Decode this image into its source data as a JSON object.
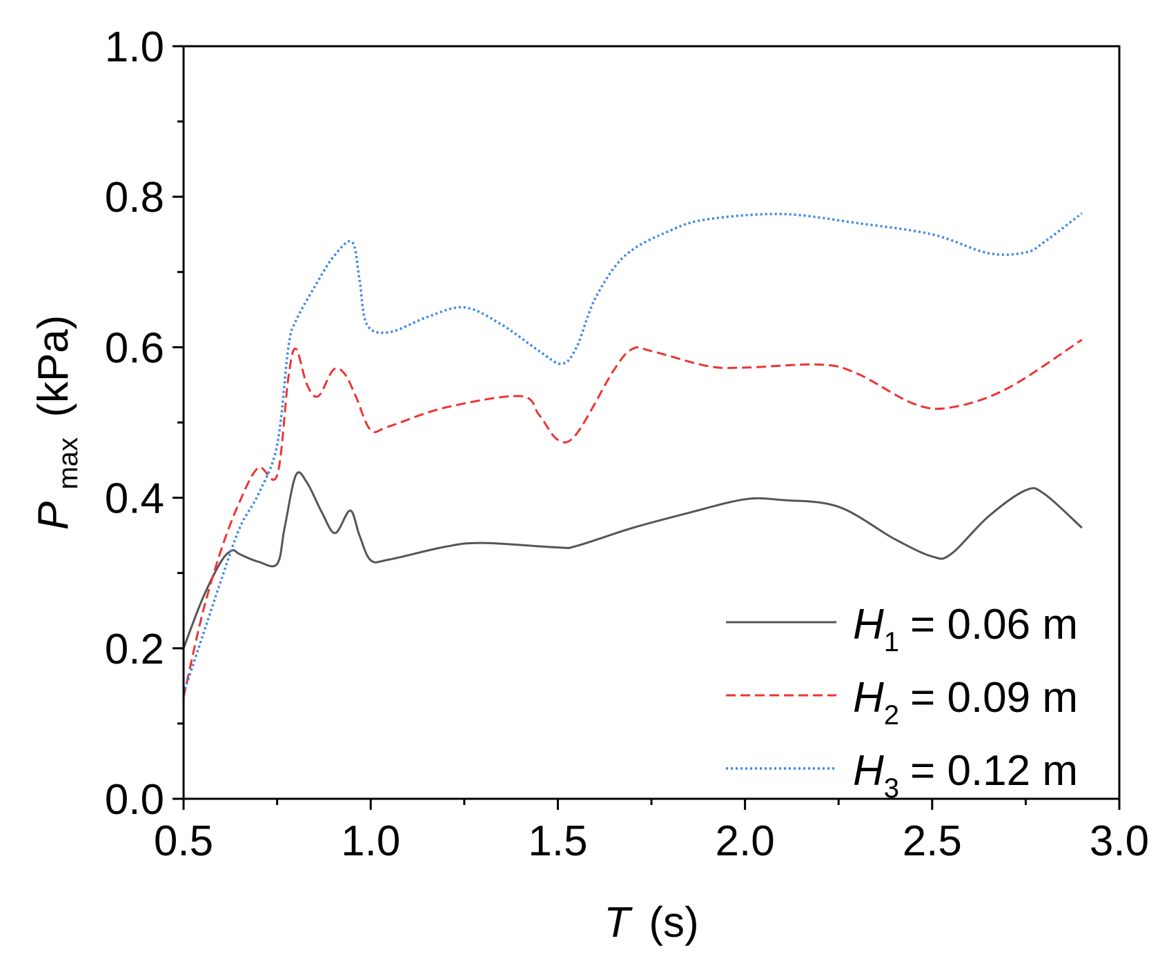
{
  "chart_data": {
    "type": "line",
    "title": "",
    "xlabel": {
      "symbol": "T",
      "unit": "(s)"
    },
    "ylabel": {
      "symbol": "P",
      "subscript": "max",
      "unit": "(kPa)"
    },
    "xlim": [
      0.5,
      3.0
    ],
    "ylim": [
      0.0,
      1.0
    ],
    "xticks": [
      "0.5",
      "1.0",
      "1.5",
      "2.0",
      "2.5",
      "3.0"
    ],
    "yticks": [
      "0.0",
      "0.2",
      "0.4",
      "0.6",
      "0.8",
      "1.0"
    ],
    "grid": false,
    "legend": "bottom-right",
    "series": [
      {
        "legend": {
          "symbol": "H",
          "subscript": "1",
          "text": "= 0.06 m"
        },
        "color": "#555555",
        "dash": "solid",
        "points": [
          [
            0.5,
            0.2
          ],
          [
            0.55,
            0.265
          ],
          [
            0.6,
            0.315
          ],
          [
            0.63,
            0.33
          ],
          [
            0.65,
            0.325
          ],
          [
            0.7,
            0.315
          ],
          [
            0.75,
            0.312
          ],
          [
            0.77,
            0.36
          ],
          [
            0.8,
            0.43
          ],
          [
            0.83,
            0.42
          ],
          [
            0.87,
            0.38
          ],
          [
            0.905,
            0.353
          ],
          [
            0.945,
            0.383
          ],
          [
            0.97,
            0.35
          ],
          [
            1.0,
            0.317
          ],
          [
            1.05,
            0.318
          ],
          [
            1.2,
            0.335
          ],
          [
            1.3,
            0.34
          ],
          [
            1.5,
            0.334
          ],
          [
            1.55,
            0.336
          ],
          [
            1.7,
            0.36
          ],
          [
            1.85,
            0.38
          ],
          [
            2.0,
            0.398
          ],
          [
            2.1,
            0.397
          ],
          [
            2.25,
            0.388
          ],
          [
            2.4,
            0.345
          ],
          [
            2.5,
            0.322
          ],
          [
            2.55,
            0.325
          ],
          [
            2.65,
            0.375
          ],
          [
            2.75,
            0.41
          ],
          [
            2.8,
            0.405
          ],
          [
            2.9,
            0.36
          ]
        ]
      },
      {
        "legend": {
          "symbol": "H",
          "subscript": "2",
          "text": "= 0.09 m"
        },
        "color": "#ee3333",
        "dash": "dashed",
        "points": [
          [
            0.5,
            0.135
          ],
          [
            0.55,
            0.245
          ],
          [
            0.6,
            0.33
          ],
          [
            0.65,
            0.395
          ],
          [
            0.7,
            0.44
          ],
          [
            0.75,
            0.43
          ],
          [
            0.78,
            0.56
          ],
          [
            0.8,
            0.598
          ],
          [
            0.83,
            0.55
          ],
          [
            0.86,
            0.535
          ],
          [
            0.9,
            0.57
          ],
          [
            0.93,
            0.565
          ],
          [
            0.96,
            0.535
          ],
          [
            1.0,
            0.49
          ],
          [
            1.05,
            0.495
          ],
          [
            1.2,
            0.52
          ],
          [
            1.4,
            0.535
          ],
          [
            1.45,
            0.51
          ],
          [
            1.5,
            0.477
          ],
          [
            1.55,
            0.485
          ],
          [
            1.65,
            0.57
          ],
          [
            1.7,
            0.598
          ],
          [
            1.75,
            0.595
          ],
          [
            1.9,
            0.575
          ],
          [
            2.0,
            0.573
          ],
          [
            2.2,
            0.577
          ],
          [
            2.3,
            0.565
          ],
          [
            2.45,
            0.525
          ],
          [
            2.55,
            0.52
          ],
          [
            2.7,
            0.545
          ],
          [
            2.9,
            0.61
          ]
        ]
      },
      {
        "legend": {
          "symbol": "H",
          "subscript": "3",
          "text": "= 0.12 m"
        },
        "color": "#3a86e8",
        "dash": "dotted",
        "points": [
          [
            0.5,
            0.14
          ],
          [
            0.55,
            0.215
          ],
          [
            0.6,
            0.29
          ],
          [
            0.65,
            0.36
          ],
          [
            0.7,
            0.405
          ],
          [
            0.75,
            0.47
          ],
          [
            0.78,
            0.6
          ],
          [
            0.8,
            0.635
          ],
          [
            0.85,
            0.68
          ],
          [
            0.9,
            0.72
          ],
          [
            0.95,
            0.74
          ],
          [
            0.97,
            0.69
          ],
          [
            0.99,
            0.63
          ],
          [
            1.05,
            0.62
          ],
          [
            1.15,
            0.64
          ],
          [
            1.25,
            0.653
          ],
          [
            1.35,
            0.63
          ],
          [
            1.45,
            0.595
          ],
          [
            1.51,
            0.578
          ],
          [
            1.55,
            0.6
          ],
          [
            1.6,
            0.665
          ],
          [
            1.68,
            0.722
          ],
          [
            1.8,
            0.755
          ],
          [
            1.9,
            0.77
          ],
          [
            2.1,
            0.777
          ],
          [
            2.3,
            0.765
          ],
          [
            2.5,
            0.75
          ],
          [
            2.65,
            0.725
          ],
          [
            2.75,
            0.726
          ],
          [
            2.8,
            0.74
          ],
          [
            2.9,
            0.778
          ]
        ]
      }
    ]
  }
}
